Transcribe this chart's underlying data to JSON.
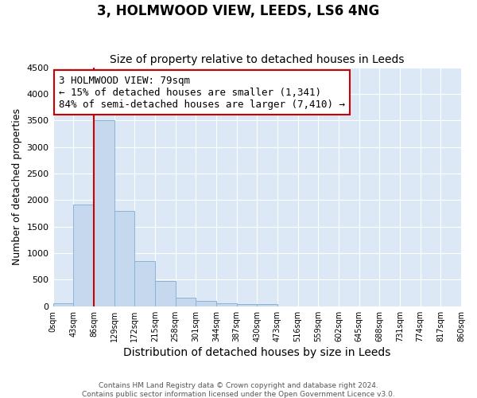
{
  "title": "3, HOLMWOOD VIEW, LEEDS, LS6 4NG",
  "subtitle": "Size of property relative to detached houses in Leeds",
  "xlabel": "Distribution of detached houses by size in Leeds",
  "ylabel": "Number of detached properties",
  "bar_values": [
    50,
    1920,
    3500,
    1800,
    850,
    470,
    160,
    100,
    55,
    45,
    35,
    0,
    0,
    0,
    0,
    0,
    0,
    0,
    0,
    0
  ],
  "bin_labels": [
    "0sqm",
    "43sqm",
    "86sqm",
    "129sqm",
    "172sqm",
    "215sqm",
    "258sqm",
    "301sqm",
    "344sqm",
    "387sqm",
    "430sqm",
    "473sqm",
    "516sqm",
    "559sqm",
    "602sqm",
    "645sqm",
    "688sqm",
    "731sqm",
    "774sqm",
    "817sqm",
    "860sqm"
  ],
  "bar_color": "#c5d8ee",
  "bar_edge_color": "#8ab4d4",
  "vline_x": 2,
  "vline_color": "#cc0000",
  "annotation_text": "3 HOLMWOOD VIEW: 79sqm\n← 15% of detached houses are smaller (1,341)\n84% of semi-detached houses are larger (7,410) →",
  "annotation_box_color": "#cc0000",
  "ylim": [
    0,
    4500
  ],
  "yticks": [
    0,
    500,
    1000,
    1500,
    2000,
    2500,
    3000,
    3500,
    4000,
    4500
  ],
  "bg_color": "#dce8f5",
  "footer_text": "Contains HM Land Registry data © Crown copyright and database right 2024.\nContains public sector information licensed under the Open Government Licence v3.0.",
  "title_fontsize": 12,
  "subtitle_fontsize": 10,
  "annotation_fontsize": 9,
  "ylabel_fontsize": 9,
  "xlabel_fontsize": 10
}
